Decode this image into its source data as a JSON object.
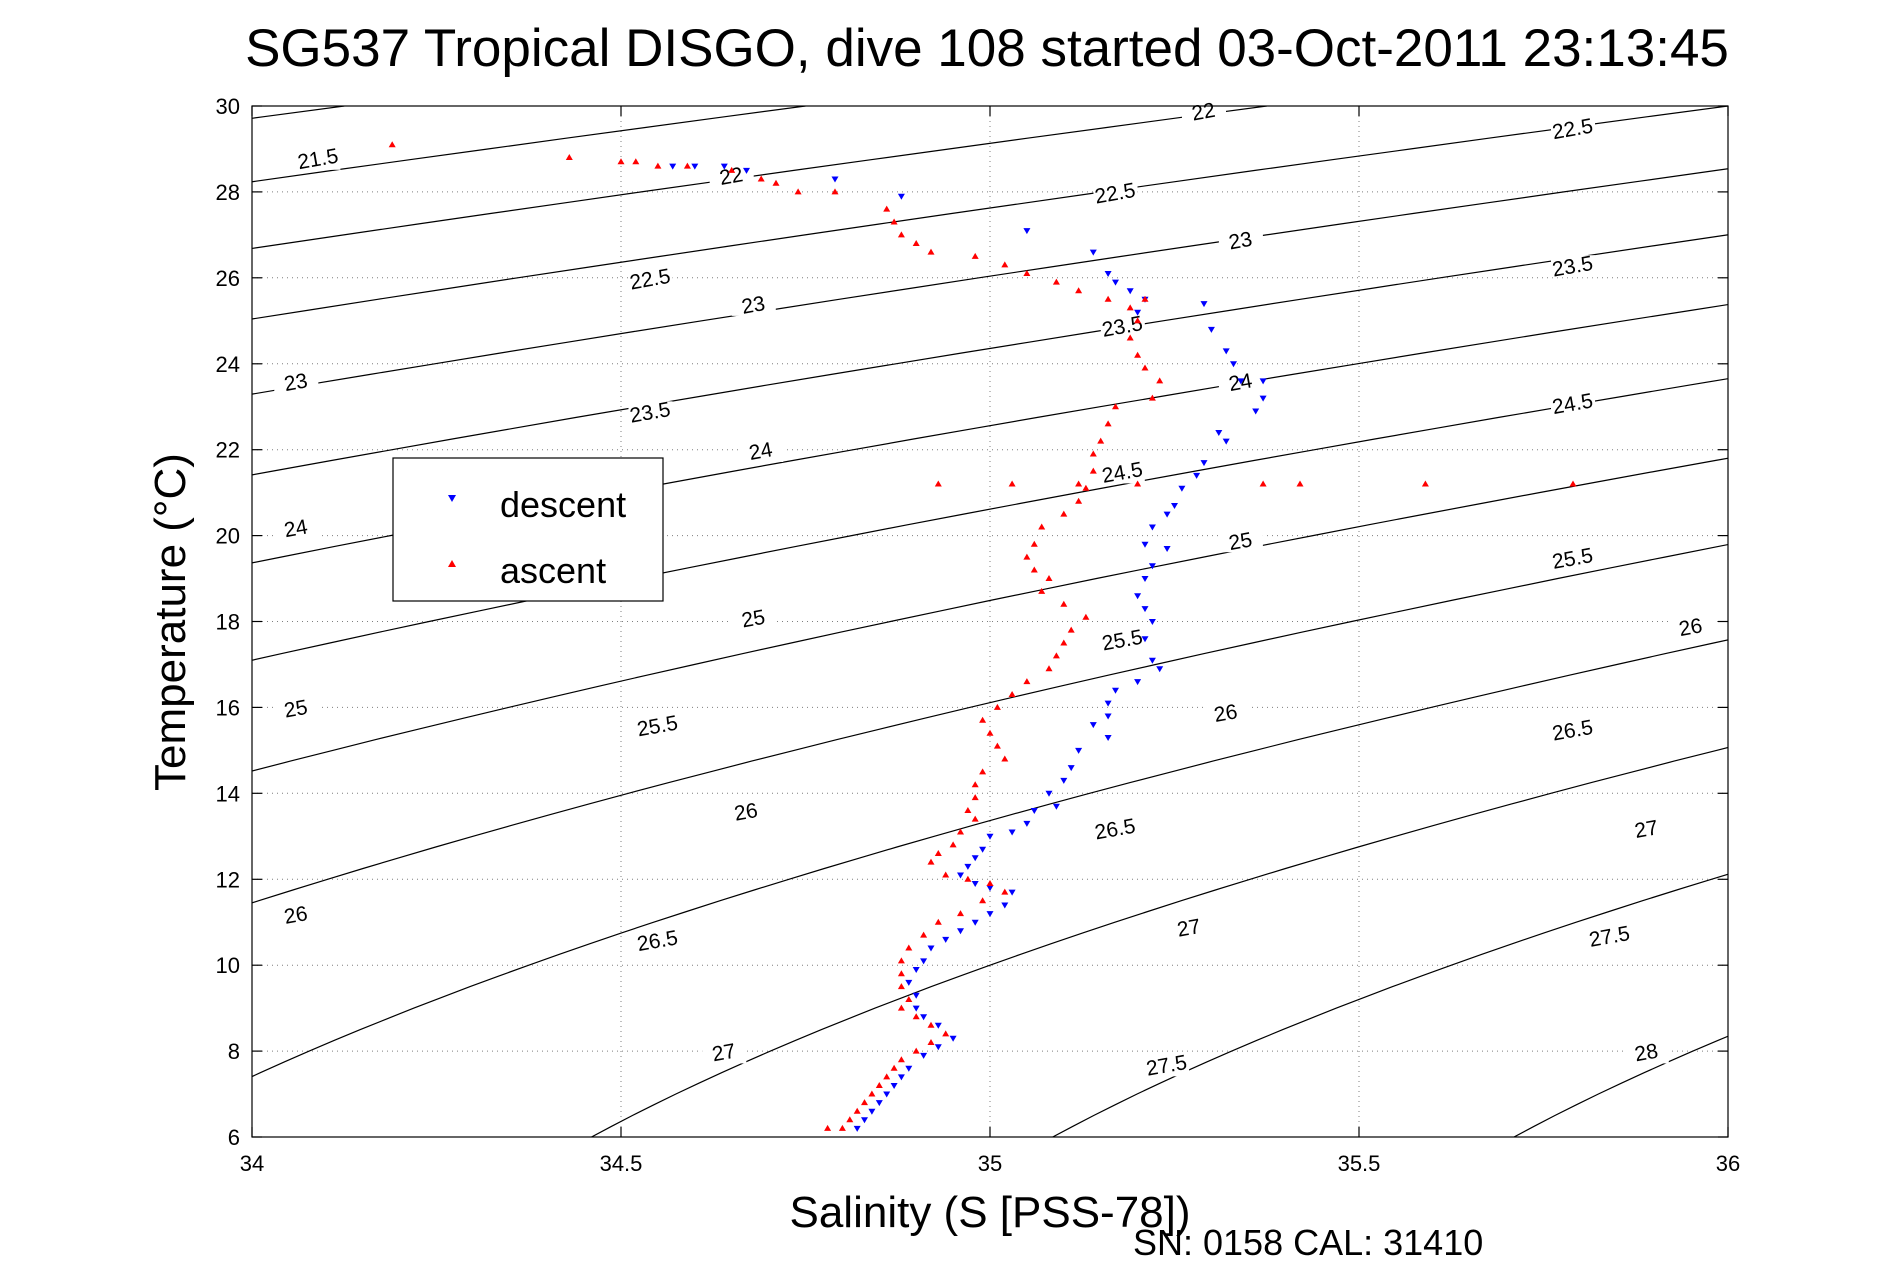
{
  "chart_data": {
    "type": "scatter",
    "title": "SG537 Tropical DISGO, dive 108 started 03-Oct-2011 23:13:45",
    "xlabel": "Salinity (S [PSS-78])",
    "ylabel": "Temperature (°C)",
    "xlim": [
      34,
      36
    ],
    "ylim": [
      6,
      30
    ],
    "x_ticks": [
      34,
      34.5,
      35,
      35.5,
      36
    ],
    "x_tick_labels": [
      "34",
      "34.5",
      "35",
      "35.5",
      "36"
    ],
    "y_ticks": [
      6,
      8,
      10,
      12,
      14,
      16,
      18,
      20,
      22,
      24,
      26,
      28,
      30
    ],
    "y_tick_labels": [
      "6",
      "8",
      "10",
      "12",
      "14",
      "16",
      "18",
      "20",
      "22",
      "24",
      "26",
      "28",
      "30"
    ],
    "grid": true,
    "legend": {
      "position": "center-left",
      "entries": [
        "descent",
        "ascent"
      ]
    },
    "footer": "SN: 0158  CAL: 31410",
    "isopycnals": {
      "levels": [
        21.5,
        22,
        22.5,
        23,
        23.5,
        24,
        24.5,
        25,
        25.5,
        26,
        26.5,
        27,
        27.5,
        28
      ],
      "labels": [
        {
          "text": "21.5",
          "s": 34.09,
          "t": 28.7
        },
        {
          "text": "22",
          "s": 34.65,
          "t": 28.3
        },
        {
          "text": "22",
          "s": 35.29,
          "t": 29.8
        },
        {
          "text": "22.5",
          "s": 34.54,
          "t": 25.9
        },
        {
          "text": "22.5",
          "s": 35.17,
          "t": 27.9
        },
        {
          "text": "22.5",
          "s": 35.79,
          "t": 29.4
        },
        {
          "text": "23",
          "s": 34.06,
          "t": 23.5
        },
        {
          "text": "23",
          "s": 34.68,
          "t": 25.3
        },
        {
          "text": "23",
          "s": 35.34,
          "t": 26.8
        },
        {
          "text": "23.5",
          "s": 34.54,
          "t": 22.8
        },
        {
          "text": "23.5",
          "s": 35.18,
          "t": 24.8
        },
        {
          "text": "23.5",
          "s": 35.79,
          "t": 26.2
        },
        {
          "text": "24",
          "s": 34.06,
          "t": 20.1
        },
        {
          "text": "24",
          "s": 34.69,
          "t": 21.9
        },
        {
          "text": "24",
          "s": 35.34,
          "t": 23.5
        },
        {
          "text": "24.5",
          "s": 35.18,
          "t": 21.4
        },
        {
          "text": "24.5",
          "s": 35.79,
          "t": 23.0
        },
        {
          "text": "25",
          "s": 34.06,
          "t": 15.9
        },
        {
          "text": "25",
          "s": 34.68,
          "t": 18.0
        },
        {
          "text": "25",
          "s": 35.34,
          "t": 19.8
        },
        {
          "text": "25.5",
          "s": 34.55,
          "t": 15.5
        },
        {
          "text": "25.5",
          "s": 35.18,
          "t": 17.5
        },
        {
          "text": "25.5",
          "s": 35.79,
          "t": 19.4
        },
        {
          "text": "26",
          "s": 34.06,
          "t": 11.1
        },
        {
          "text": "26",
          "s": 34.67,
          "t": 13.5
        },
        {
          "text": "26",
          "s": 35.32,
          "t": 15.8
        },
        {
          "text": "26",
          "s": 35.95,
          "t": 17.8
        },
        {
          "text": "26.5",
          "s": 34.55,
          "t": 10.5
        },
        {
          "text": "26.5",
          "s": 35.17,
          "t": 13.1
        },
        {
          "text": "26.5",
          "s": 35.79,
          "t": 15.4
        },
        {
          "text": "27",
          "s": 34.64,
          "t": 7.9
        },
        {
          "text": "27",
          "s": 35.27,
          "t": 10.8
        },
        {
          "text": "27",
          "s": 35.89,
          "t": 13.1
        },
        {
          "text": "27.5",
          "s": 35.24,
          "t": 7.6
        },
        {
          "text": "27.5",
          "s": 35.84,
          "t": 10.6
        },
        {
          "text": "28",
          "s": 35.89,
          "t": 7.9
        }
      ]
    },
    "series": [
      {
        "name": "descent",
        "color": "#0000ff",
        "marker": "triangle-down",
        "points": [
          [
            34.57,
            28.6
          ],
          [
            34.6,
            28.6
          ],
          [
            34.64,
            28.6
          ],
          [
            34.67,
            28.5
          ],
          [
            34.79,
            28.3
          ],
          [
            34.88,
            27.9
          ],
          [
            35.05,
            27.1
          ],
          [
            35.14,
            26.6
          ],
          [
            35.16,
            26.1
          ],
          [
            35.17,
            25.9
          ],
          [
            35.19,
            25.7
          ],
          [
            35.21,
            25.5
          ],
          [
            35.2,
            25.2
          ],
          [
            35.29,
            25.4
          ],
          [
            35.3,
            24.8
          ],
          [
            35.32,
            24.3
          ],
          [
            35.33,
            24.0
          ],
          [
            35.34,
            23.6
          ],
          [
            35.37,
            23.6
          ],
          [
            35.37,
            23.2
          ],
          [
            35.36,
            22.9
          ],
          [
            35.31,
            22.4
          ],
          [
            35.32,
            22.2
          ],
          [
            35.29,
            21.7
          ],
          [
            35.28,
            21.4
          ],
          [
            35.26,
            21.1
          ],
          [
            35.25,
            20.7
          ],
          [
            35.24,
            20.5
          ],
          [
            35.22,
            20.2
          ],
          [
            35.21,
            19.8
          ],
          [
            35.24,
            19.7
          ],
          [
            35.22,
            19.3
          ],
          [
            35.21,
            19.0
          ],
          [
            35.2,
            18.6
          ],
          [
            35.21,
            18.3
          ],
          [
            35.22,
            18.0
          ],
          [
            35.21,
            17.6
          ],
          [
            35.22,
            17.1
          ],
          [
            35.23,
            16.9
          ],
          [
            35.2,
            16.6
          ],
          [
            35.17,
            16.4
          ],
          [
            35.16,
            16.1
          ],
          [
            35.16,
            15.8
          ],
          [
            35.14,
            15.6
          ],
          [
            35.16,
            15.3
          ],
          [
            35.12,
            15.0
          ],
          [
            35.11,
            14.6
          ],
          [
            35.1,
            14.3
          ],
          [
            35.08,
            14.0
          ],
          [
            35.09,
            13.7
          ],
          [
            35.06,
            13.6
          ],
          [
            35.05,
            13.3
          ],
          [
            35.03,
            13.1
          ],
          [
            35.0,
            13.0
          ],
          [
            34.99,
            12.7
          ],
          [
            34.98,
            12.5
          ],
          [
            34.97,
            12.3
          ],
          [
            34.96,
            12.1
          ],
          [
            34.98,
            11.9
          ],
          [
            35.0,
            11.8
          ],
          [
            35.03,
            11.7
          ],
          [
            35.02,
            11.4
          ],
          [
            35.0,
            11.2
          ],
          [
            34.98,
            11.0
          ],
          [
            34.96,
            10.8
          ],
          [
            34.94,
            10.6
          ],
          [
            34.92,
            10.4
          ],
          [
            34.91,
            10.1
          ],
          [
            34.9,
            9.9
          ],
          [
            34.89,
            9.6
          ],
          [
            34.9,
            9.3
          ],
          [
            34.9,
            9.0
          ],
          [
            34.91,
            8.8
          ],
          [
            34.93,
            8.6
          ],
          [
            34.95,
            8.3
          ],
          [
            34.93,
            8.1
          ],
          [
            34.91,
            7.9
          ],
          [
            34.89,
            7.6
          ],
          [
            34.88,
            7.4
          ],
          [
            34.87,
            7.2
          ],
          [
            34.86,
            7.0
          ],
          [
            34.85,
            6.8
          ],
          [
            34.84,
            6.6
          ],
          [
            34.83,
            6.4
          ],
          [
            34.82,
            6.2
          ]
        ]
      },
      {
        "name": "ascent",
        "color": "#ff0000",
        "marker": "triangle-up",
        "points": [
          [
            34.19,
            29.1
          ],
          [
            34.43,
            28.8
          ],
          [
            34.5,
            28.7
          ],
          [
            34.52,
            28.7
          ],
          [
            34.55,
            28.6
          ],
          [
            34.59,
            28.6
          ],
          [
            34.65,
            28.5
          ],
          [
            34.69,
            28.3
          ],
          [
            34.71,
            28.2
          ],
          [
            34.74,
            28.0
          ],
          [
            34.79,
            28.0
          ],
          [
            34.86,
            27.6
          ],
          [
            34.87,
            27.3
          ],
          [
            34.88,
            27.0
          ],
          [
            34.9,
            26.8
          ],
          [
            34.92,
            26.6
          ],
          [
            34.98,
            26.5
          ],
          [
            35.02,
            26.3
          ],
          [
            35.05,
            26.1
          ],
          [
            35.09,
            25.9
          ],
          [
            35.12,
            25.7
          ],
          [
            35.16,
            25.5
          ],
          [
            35.19,
            25.3
          ],
          [
            35.21,
            25.5
          ],
          [
            35.2,
            25.0
          ],
          [
            35.19,
            24.6
          ],
          [
            35.2,
            24.2
          ],
          [
            35.21,
            23.9
          ],
          [
            35.23,
            23.6
          ],
          [
            35.22,
            23.2
          ],
          [
            35.17,
            23.0
          ],
          [
            35.16,
            22.6
          ],
          [
            35.15,
            22.2
          ],
          [
            35.14,
            21.9
          ],
          [
            35.14,
            21.5
          ],
          [
            35.13,
            21.1
          ],
          [
            35.12,
            20.8
          ],
          [
            35.1,
            20.5
          ],
          [
            35.07,
            20.2
          ],
          [
            35.06,
            19.8
          ],
          [
            35.05,
            19.5
          ],
          [
            35.06,
            19.2
          ],
          [
            35.08,
            19.0
          ],
          [
            35.07,
            18.7
          ],
          [
            35.1,
            18.4
          ],
          [
            35.13,
            18.1
          ],
          [
            35.11,
            17.8
          ],
          [
            35.1,
            17.5
          ],
          [
            35.09,
            17.2
          ],
          [
            35.08,
            16.9
          ],
          [
            35.05,
            16.6
          ],
          [
            35.03,
            16.3
          ],
          [
            35.01,
            16.0
          ],
          [
            34.99,
            15.7
          ],
          [
            35.0,
            15.4
          ],
          [
            35.01,
            15.1
          ],
          [
            35.02,
            14.8
          ],
          [
            34.99,
            14.5
          ],
          [
            34.98,
            14.2
          ],
          [
            34.98,
            13.9
          ],
          [
            34.97,
            13.6
          ],
          [
            34.98,
            13.4
          ],
          [
            34.96,
            13.1
          ],
          [
            34.95,
            12.8
          ],
          [
            34.93,
            12.6
          ],
          [
            34.92,
            12.4
          ],
          [
            34.94,
            12.1
          ],
          [
            34.97,
            12.0
          ],
          [
            35.0,
            11.9
          ],
          [
            35.02,
            11.7
          ],
          [
            34.99,
            11.5
          ],
          [
            34.96,
            11.2
          ],
          [
            34.93,
            11.0
          ],
          [
            34.91,
            10.7
          ],
          [
            34.89,
            10.4
          ],
          [
            34.88,
            10.1
          ],
          [
            34.88,
            9.8
          ],
          [
            34.88,
            9.5
          ],
          [
            34.89,
            9.2
          ],
          [
            34.88,
            9.0
          ],
          [
            34.9,
            8.8
          ],
          [
            34.92,
            8.6
          ],
          [
            34.94,
            8.4
          ],
          [
            34.92,
            8.2
          ],
          [
            34.9,
            8.0
          ],
          [
            34.88,
            7.8
          ],
          [
            34.87,
            7.6
          ],
          [
            34.86,
            7.4
          ],
          [
            34.85,
            7.2
          ],
          [
            34.84,
            7.0
          ],
          [
            34.83,
            6.8
          ],
          [
            34.82,
            6.6
          ],
          [
            34.81,
            6.4
          ],
          [
            34.8,
            6.2
          ],
          [
            34.78,
            6.2
          ],
          [
            34.93,
            21.2
          ],
          [
            35.03,
            21.2
          ],
          [
            35.12,
            21.2
          ],
          [
            35.2,
            21.2
          ],
          [
            35.37,
            21.2
          ],
          [
            35.42,
            21.2
          ],
          [
            35.59,
            21.2
          ],
          [
            35.79,
            21.2
          ]
        ]
      }
    ]
  }
}
